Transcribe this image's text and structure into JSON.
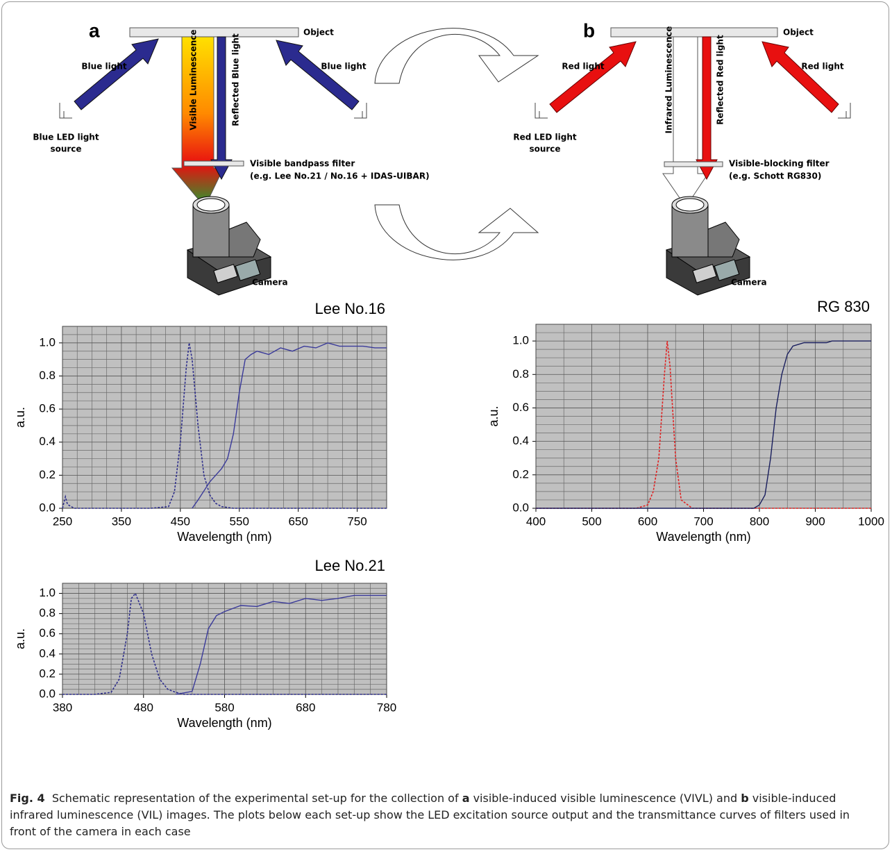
{
  "diagram": {
    "a": {
      "label": "a",
      "object": "Object",
      "light_left": "Blue light",
      "light_right": "Blue light",
      "source": [
        "Blue LED light",
        "source"
      ],
      "beam1": "Visible Luminescence",
      "beam2": "Reflected Blue light",
      "filter": [
        "Visible bandpass filter",
        "(e.g. Lee No.21 / No.16 + IDAS-UIBAR)"
      ],
      "camera": "Camera"
    },
    "b": {
      "label": "b",
      "object": "Object",
      "light_left": "Red light",
      "light_right": "Red light",
      "source": [
        "Red LED light",
        "source"
      ],
      "beam1": "Infrared Luminescence",
      "beam2": "Reflected Red light",
      "filter": [
        "Visible-blocking filter",
        "(e.g. Schott RG830)"
      ],
      "camera": "Camera"
    }
  },
  "chart_data": [
    {
      "type": "line",
      "title": "Lee No.16",
      "x_label": "Wavelength (nm)",
      "y_label": "a.u.",
      "xlim": [
        250,
        800
      ],
      "xticks": [
        250,
        350,
        450,
        550,
        650,
        750
      ],
      "ylim": [
        0,
        1.1
      ],
      "yticks": [
        {
          "value": 0,
          "label": "0.0"
        },
        0.2,
        0.4,
        0.6,
        0.8,
        {
          "value": 1,
          "label": "1.0"
        }
      ],
      "grid": true,
      "series": [
        {
          "color": "#2e2e8c",
          "dashed": true,
          "x": [
            250,
            255,
            258,
            260,
            265,
            270,
            300,
            400,
            430,
            440,
            450,
            460,
            465,
            470,
            480,
            490,
            500,
            510,
            520,
            540,
            560,
            600,
            800
          ],
          "values": [
            0,
            0.07,
            0.03,
            0.02,
            0.01,
            0,
            0,
            0,
            0.01,
            0.1,
            0.4,
            0.85,
            1.0,
            0.9,
            0.5,
            0.2,
            0.08,
            0.03,
            0.01,
            0,
            0,
            0,
            0
          ]
        },
        {
          "color": "#3a3a9a",
          "dashed": false,
          "x": [
            470,
            480,
            500,
            520,
            530,
            540,
            550,
            560,
            570,
            580,
            600,
            620,
            640,
            660,
            680,
            700,
            720,
            740,
            760,
            780,
            800
          ],
          "values": [
            0,
            0.05,
            0.16,
            0.24,
            0.3,
            0.45,
            0.7,
            0.9,
            0.93,
            0.95,
            0.93,
            0.97,
            0.95,
            0.98,
            0.97,
            1.0,
            0.98,
            0.98,
            0.98,
            0.97,
            0.97
          ]
        }
      ]
    },
    {
      "type": "line",
      "title": "Lee No.21",
      "x_label": "Wavelength (nm)",
      "y_label": "a.u.",
      "xlim": [
        380,
        780
      ],
      "xticks": [
        380,
        480,
        580,
        680,
        780
      ],
      "ylim": [
        0,
        1.1
      ],
      "yticks": [
        {
          "value": 0,
          "label": "0.0"
        },
        0.2,
        0.4,
        0.6,
        0.8,
        {
          "value": 1,
          "label": "1.0"
        }
      ],
      "grid": true,
      "series": [
        {
          "color": "#2e2e8c",
          "dashed": true,
          "x": [
            380,
            420,
            440,
            450,
            460,
            465,
            470,
            480,
            490,
            500,
            510,
            520,
            530,
            780
          ],
          "values": [
            0,
            0,
            0.02,
            0.15,
            0.6,
            0.95,
            1.0,
            0.8,
            0.4,
            0.15,
            0.05,
            0.02,
            0,
            0
          ]
        },
        {
          "color": "#3a3a9a",
          "dashed": false,
          "x": [
            520,
            540,
            550,
            560,
            570,
            580,
            600,
            620,
            640,
            660,
            680,
            700,
            720,
            740,
            760,
            780
          ],
          "values": [
            0,
            0.03,
            0.3,
            0.65,
            0.78,
            0.82,
            0.88,
            0.87,
            0.92,
            0.9,
            0.95,
            0.93,
            0.95,
            0.98,
            0.98,
            0.98
          ]
        }
      ]
    },
    {
      "type": "line",
      "title": "RG 830",
      "x_label": "Wavelength (nm)",
      "y_label": "a.u.",
      "xlim": [
        400,
        1000
      ],
      "xticks": [
        400,
        500,
        600,
        700,
        800,
        900,
        1000
      ],
      "ylim": [
        0,
        1.1
      ],
      "yticks": [
        {
          "value": 0,
          "label": "0.0"
        },
        0.2,
        0.4,
        0.6,
        0.8,
        {
          "value": 1,
          "label": "1.0"
        }
      ],
      "grid": true,
      "series": [
        {
          "color": "#e02020",
          "dashed": true,
          "x": [
            400,
            580,
            600,
            610,
            615,
            620,
            630,
            635,
            640,
            650,
            660,
            680,
            1000
          ],
          "values": [
            0,
            0,
            0.02,
            0.1,
            0.2,
            0.3,
            0.8,
            1.0,
            0.85,
            0.3,
            0.05,
            0,
            0
          ]
        },
        {
          "color": "#1a1f5e",
          "dashed": false,
          "x": [
            400,
            790,
            800,
            810,
            820,
            830,
            840,
            850,
            860,
            870,
            880,
            900,
            920,
            930,
            1000
          ],
          "values": [
            0,
            0,
            0.02,
            0.08,
            0.3,
            0.6,
            0.8,
            0.92,
            0.97,
            0.98,
            0.99,
            0.99,
            0.99,
            1.0,
            1.0
          ]
        }
      ]
    }
  ],
  "caption": {
    "label": "Fig. 4",
    "text": [
      "Schematic representation of the experimental set-up for the collection of",
      "a",
      "visible-induced visible luminescence (VIVL) and",
      "b",
      "visible-induced infrared luminescence (VIL) images. The plots below each set-up show the LED excitation source output and the transmittance curves of filters used in front of the camera in each case"
    ]
  }
}
